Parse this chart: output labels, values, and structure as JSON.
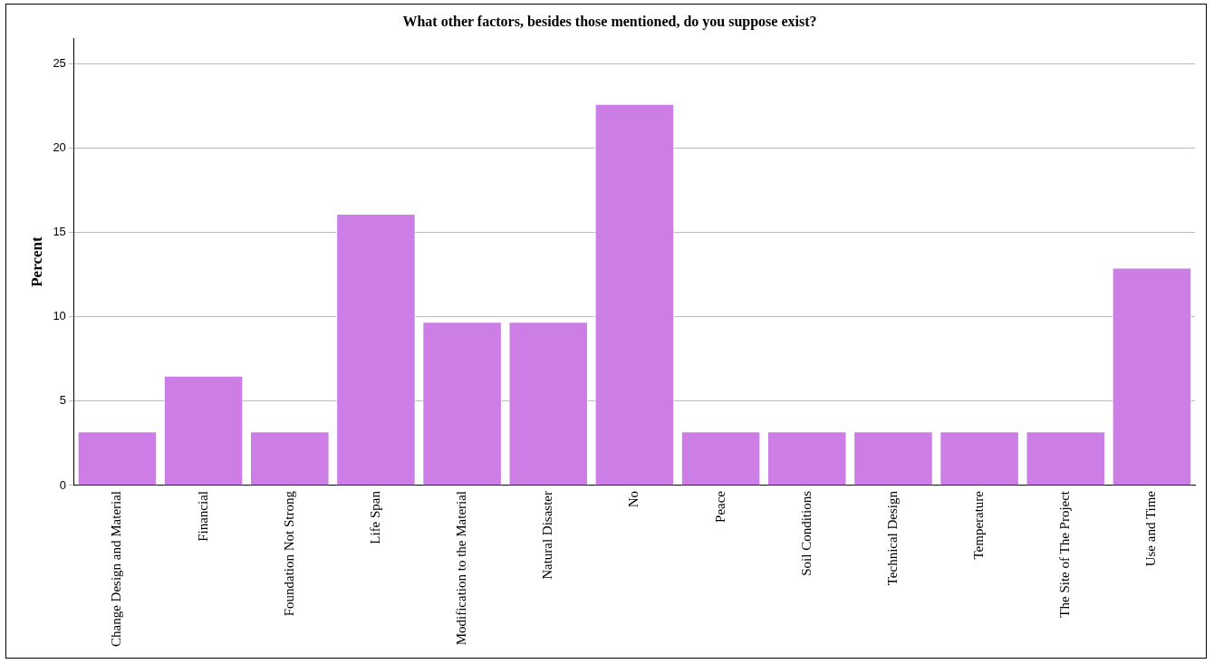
{
  "chart_data": {
    "type": "bar",
    "title": "What other factors, besides those mentioned, do you suppose exist?",
    "ylabel": "Percent",
    "categories": [
      "Change Design and Material",
      "Financial",
      "Foundation Not Strong",
      "Life Span",
      "Modification to the Material",
      "Natural Disaster",
      "No",
      "Peace",
      "Soil Conditions",
      "Technical Design",
      "Temperature",
      "The Site of The Project",
      "Use and Time"
    ],
    "values": [
      3.2,
      6.5,
      3.2,
      16.1,
      9.7,
      9.7,
      22.6,
      3.2,
      3.2,
      3.2,
      3.2,
      3.2,
      12.9
    ],
    "color": "#cc7ee6",
    "ylim": [
      0,
      26.5
    ],
    "yticks": [
      0,
      5,
      10,
      15,
      20,
      25
    ],
    "grid": "y",
    "legend": false
  }
}
